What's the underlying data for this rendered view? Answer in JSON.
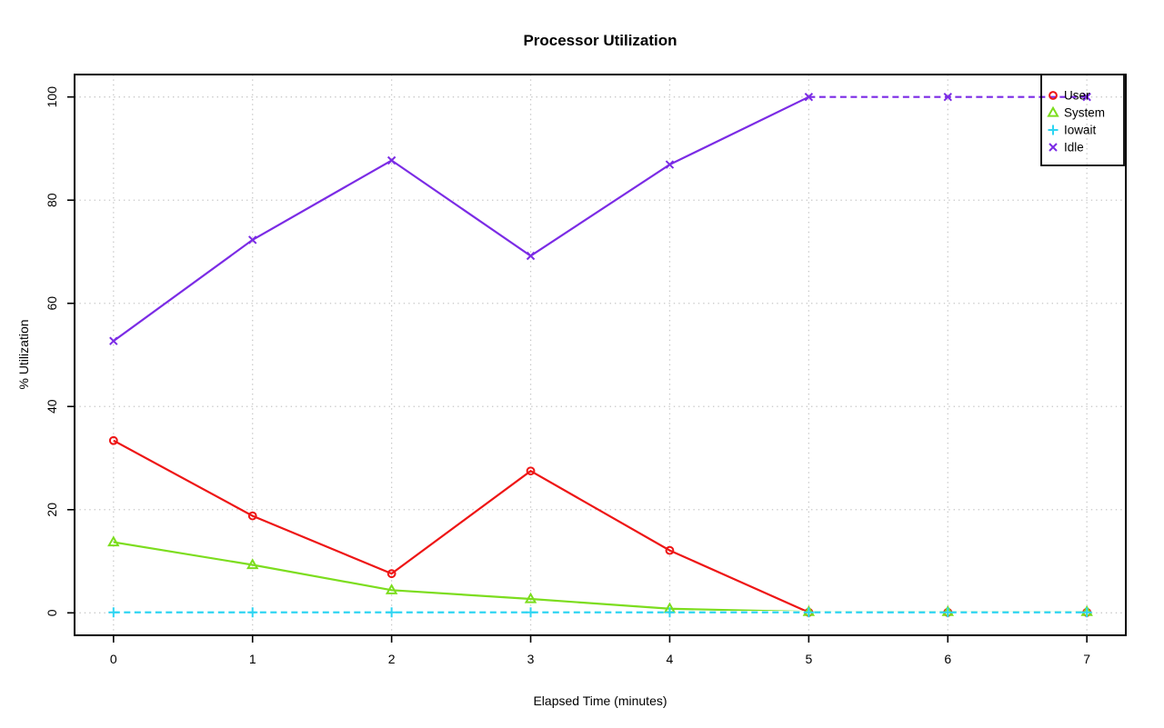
{
  "chart_data": {
    "type": "line",
    "title": "Processor Utilization",
    "xlabel": "Elapsed Time (minutes)",
    "ylabel": "% Utilization",
    "x": [
      0,
      1,
      2,
      3,
      4,
      5,
      6,
      7
    ],
    "xticks": [
      "0",
      "1",
      "2",
      "3",
      "4",
      "5",
      "6",
      "7"
    ],
    "yticks": [
      "0",
      "20",
      "40",
      "60",
      "80",
      "100"
    ],
    "ytick_values": [
      0,
      20,
      40,
      60,
      80,
      100
    ],
    "xlim": [
      -0.28,
      7.28
    ],
    "ylim": [
      -4.35,
      104.35
    ],
    "grid": "dotted",
    "grid_color": "#c8c8c8",
    "legend_position": "top-right",
    "legend_transparent": true,
    "background": "#ffffff",
    "series": [
      {
        "name": "User",
        "color": "#ee1515",
        "marker": "circle",
        "dash": "none",
        "values": [
          33.4,
          18.8,
          7.6,
          27.5,
          12.1,
          0.1,
          0.1,
          0.1
        ]
      },
      {
        "name": "System",
        "color": "#7cdd1e",
        "marker": "triangle",
        "dash": "none",
        "values": [
          13.7,
          9.3,
          4.4,
          2.7,
          0.8,
          0.2,
          0.2,
          0.2
        ]
      },
      {
        "name": "Iowait",
        "color": "#2ed5f2",
        "marker": "plus",
        "dash": "all",
        "values": [
          0.1,
          0.1,
          0.1,
          0.1,
          0.1,
          0.1,
          0.1,
          0.1
        ]
      },
      {
        "name": "Idle",
        "color": "#7b2be5",
        "marker": "x",
        "dash": "from-5",
        "values": [
          52.7,
          72.3,
          87.7,
          69.2,
          86.9,
          100,
          100,
          100
        ]
      }
    ]
  }
}
